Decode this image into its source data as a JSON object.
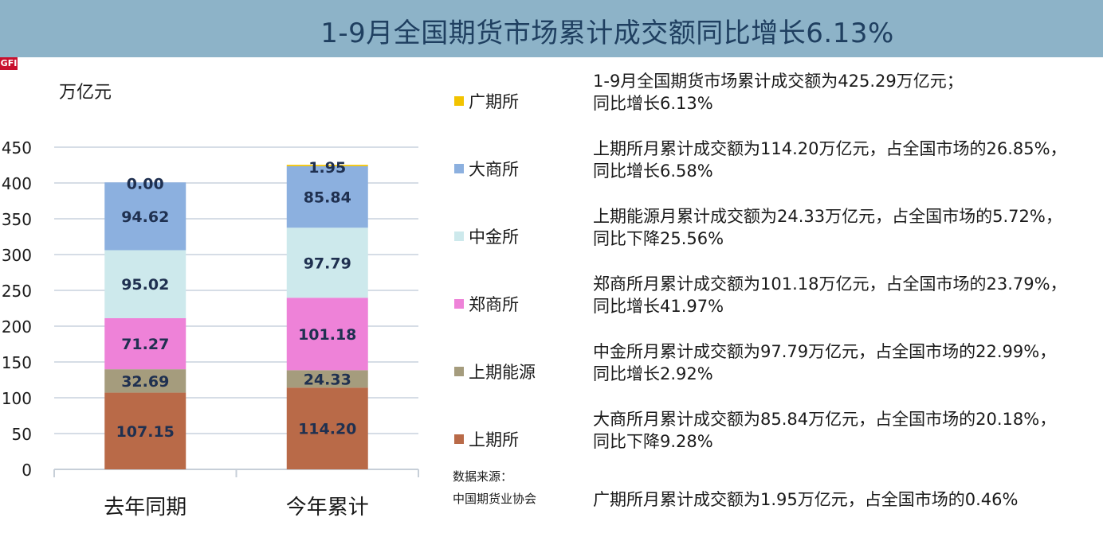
{
  "title": "1-9月全国期货市场累计成交额同比增长6.13%",
  "logo_text": "GFI",
  "unit": "万亿元",
  "source": {
    "label": "数据来源：",
    "value": "中国期货业协会"
  },
  "notes": [
    {
      "line1": "1-9月全国期货市场累计成交额为425.29万亿元；",
      "line2": "同比增长6.13%"
    },
    {
      "line1": "上期所月累计成交额为114.20万亿元，占全国市场的26.85%，",
      "line2": "同比增长6.58%"
    },
    {
      "line1": "上期能源月累计成交额为24.33万亿元，占全国市场的5.72%，",
      "line2": "同比下降25.56%"
    },
    {
      "line1": "郑商所月累计成交额为101.18万亿元，占全国市场的23.79%，",
      "line2": "同比增长41.97%"
    },
    {
      "line1": "中金所月累计成交额为97.79万亿元，占全国市场的22.99%，",
      "line2": "同比增长2.92%"
    },
    {
      "line1": "大商所月累计成交额为85.84万亿元，占全国市场的20.18%，",
      "line2": "同比下降9.28%"
    },
    {
      "line1": "广期所月累计成交额为1.95万亿元，占全国市场的0.46%",
      "line2": ""
    }
  ],
  "chart_data": {
    "type": "bar",
    "stacked": true,
    "categories": [
      "去年同期",
      "今年累计"
    ],
    "ylim": [
      0,
      450
    ],
    "yticks": [
      0,
      50,
      100,
      150,
      200,
      250,
      300,
      350,
      400,
      450
    ],
    "grid": true,
    "ylabel": "万亿元",
    "series": [
      {
        "name": "上期所",
        "color": "#b96a48",
        "values": [
          107.15,
          114.2
        ],
        "labels": [
          "107.15",
          "114.20"
        ]
      },
      {
        "name": "上期能源",
        "color": "#a59c7d",
        "values": [
          32.69,
          24.33
        ],
        "labels": [
          "32.69",
          "24.33"
        ]
      },
      {
        "name": "郑商所",
        "color": "#ee82d8",
        "values": [
          71.27,
          101.18
        ],
        "labels": [
          "71.27",
          "101.18"
        ]
      },
      {
        "name": "中金所",
        "color": "#cde9ec",
        "values": [
          95.02,
          97.79
        ],
        "labels": [
          "95.02",
          "97.79"
        ]
      },
      {
        "name": "大商所",
        "color": "#8cb0df",
        "values": [
          94.62,
          85.84
        ],
        "labels": [
          "94.62",
          "85.84"
        ]
      },
      {
        "name": "广期所",
        "color": "#f2c300",
        "values": [
          0.0,
          1.95
        ],
        "labels": [
          "0.00",
          "1.95"
        ]
      }
    ],
    "legend_order": [
      "广期所",
      "大商所",
      "中金所",
      "郑商所",
      "上期能源",
      "上期所"
    ]
  }
}
